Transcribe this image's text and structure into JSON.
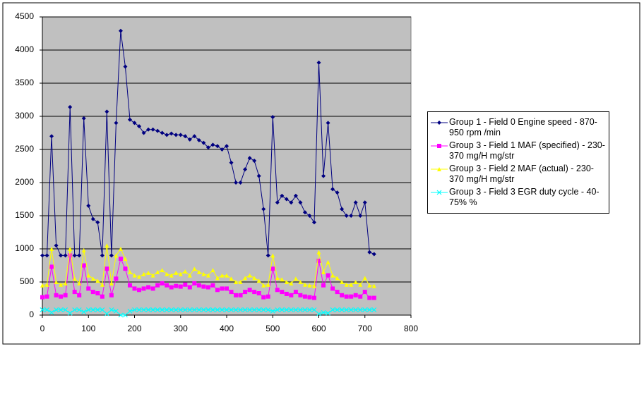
{
  "chart_data": {
    "type": "line",
    "x": [
      0,
      10,
      20,
      30,
      40,
      50,
      60,
      70,
      80,
      90,
      100,
      110,
      120,
      130,
      140,
      150,
      160,
      170,
      180,
      190,
      200,
      210,
      220,
      230,
      240,
      250,
      260,
      270,
      280,
      290,
      300,
      310,
      320,
      330,
      340,
      350,
      360,
      370,
      380,
      390,
      400,
      410,
      420,
      430,
      440,
      450,
      460,
      470,
      480,
      490,
      500,
      510,
      520,
      530,
      540,
      550,
      560,
      570,
      580,
      590,
      600,
      610,
      620,
      630,
      640,
      650,
      660,
      670,
      680,
      690,
      700,
      710,
      720
    ],
    "series": [
      {
        "name": "Group 1 - Field 0 Engine speed - 870-950 rpm  /min",
        "color": "#000080",
        "marker": "diamond",
        "values": [
          900,
          900,
          2700,
          1050,
          900,
          900,
          3140,
          900,
          900,
          2970,
          1650,
          1450,
          1400,
          900,
          3070,
          900,
          2900,
          4290,
          3750,
          2950,
          2900,
          2850,
          2750,
          2800,
          2800,
          2780,
          2750,
          2720,
          2740,
          2720,
          2720,
          2700,
          2650,
          2700,
          2640,
          2600,
          2530,
          2570,
          2550,
          2500,
          2550,
          2300,
          2000,
          2000,
          2200,
          2370,
          2330,
          2100,
          1600,
          900,
          2990,
          1700,
          1800,
          1750,
          1700,
          1800,
          1700,
          1550,
          1500,
          1400,
          3810,
          2100,
          2900,
          1900,
          1850,
          1600,
          1500,
          1500,
          1700,
          1500,
          1700,
          950,
          920
        ]
      },
      {
        "name": "Group 3 - Field 1 MAF (specified) - 230-370 mg/H  mg/str",
        "color": "#ff00ff",
        "marker": "square",
        "values": [
          270,
          280,
          730,
          300,
          280,
          300,
          900,
          350,
          300,
          750,
          400,
          350,
          330,
          280,
          700,
          300,
          550,
          850,
          700,
          450,
          400,
          380,
          400,
          420,
          400,
          450,
          480,
          450,
          420,
          440,
          430,
          460,
          420,
          480,
          450,
          430,
          420,
          450,
          380,
          400,
          400,
          350,
          300,
          300,
          350,
          380,
          350,
          330,
          270,
          280,
          700,
          380,
          350,
          320,
          300,
          350,
          300,
          280,
          270,
          260,
          820,
          450,
          600,
          400,
          350,
          300,
          280,
          280,
          300,
          280,
          350,
          260,
          260
        ]
      },
      {
        "name": "Group 3 - Field 2 MAF (actual) - 230-370 mg/H  mg/str",
        "color": "#ffff00",
        "marker": "triangle",
        "values": [
          450,
          460,
          1000,
          500,
          460,
          480,
          1000,
          550,
          480,
          980,
          600,
          550,
          520,
          460,
          1050,
          480,
          900,
          1000,
          850,
          650,
          600,
          580,
          620,
          640,
          600,
          650,
          680,
          620,
          600,
          640,
          620,
          660,
          600,
          700,
          650,
          620,
          600,
          680,
          560,
          600,
          600,
          550,
          500,
          500,
          560,
          600,
          560,
          520,
          450,
          460,
          900,
          560,
          540,
          500,
          480,
          550,
          500,
          460,
          450,
          440,
          950,
          650,
          800,
          600,
          560,
          500,
          460,
          460,
          500,
          460,
          560,
          450,
          440
        ]
      },
      {
        "name": "Group 3 - Field 3 EGR duty cycle - 40-75% %",
        "color": "#00ffff",
        "marker": "x",
        "values": [
          80,
          80,
          40,
          80,
          80,
          80,
          30,
          80,
          80,
          50,
          80,
          80,
          80,
          80,
          20,
          80,
          60,
          0,
          0,
          60,
          80,
          80,
          80,
          80,
          80,
          80,
          80,
          80,
          80,
          80,
          80,
          80,
          80,
          80,
          80,
          80,
          80,
          80,
          80,
          80,
          80,
          80,
          80,
          80,
          80,
          80,
          80,
          80,
          80,
          80,
          60,
          80,
          80,
          80,
          80,
          80,
          80,
          80,
          80,
          80,
          20,
          40,
          30,
          80,
          80,
          80,
          80,
          80,
          80,
          80,
          80,
          80,
          80
        ]
      }
    ],
    "xlim": [
      0,
      800
    ],
    "xticks": [
      0,
      100,
      200,
      300,
      400,
      500,
      600,
      700,
      800
    ],
    "ylim": [
      0,
      4500
    ],
    "yticks": [
      0,
      500,
      1000,
      1500,
      2000,
      2500,
      3000,
      3500,
      4000,
      4500
    ],
    "grid": true,
    "legend": "right"
  }
}
